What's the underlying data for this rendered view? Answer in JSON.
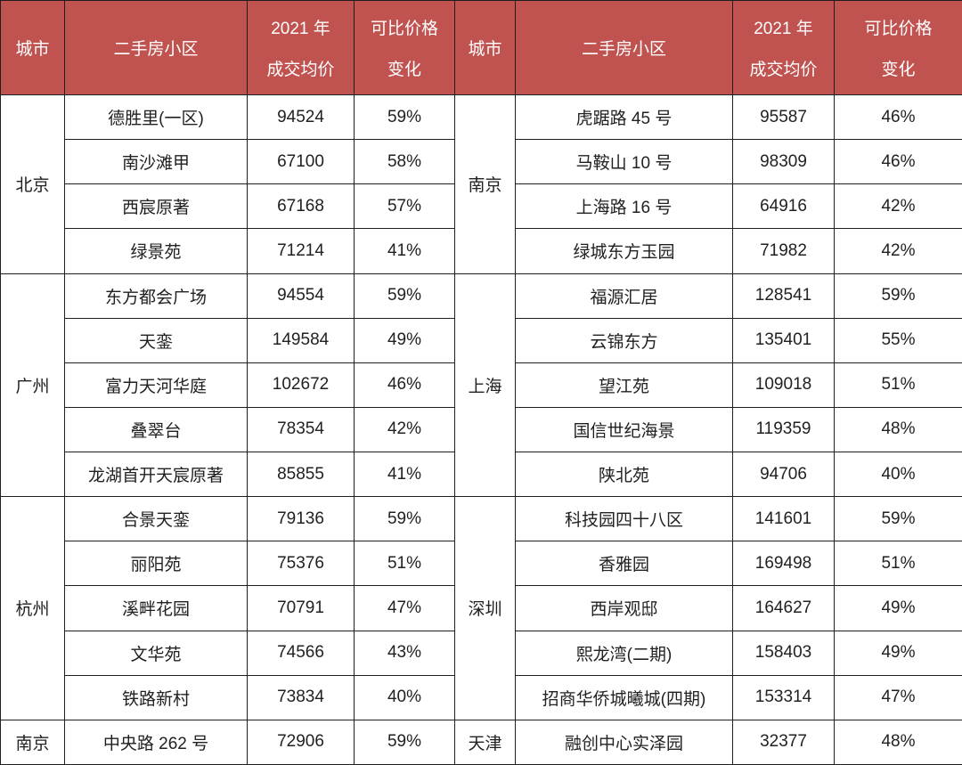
{
  "colors": {
    "header_bg": "#C05250",
    "header_text": "#FFFFFF",
    "body_text": "#212121",
    "border": "#1F1F1F"
  },
  "table": {
    "header": {
      "city": "城市",
      "community": "二手房小区",
      "price_line1": "2021 年",
      "price_line2": "成交均价",
      "change_line1": "可比价格",
      "change_line2": "变化"
    },
    "left_sections": [
      {
        "city": "北京",
        "rows": [
          {
            "community": "德胜里(一区)",
            "price": "94524",
            "change": "59%"
          },
          {
            "community": "南沙滩甲",
            "price": "67100",
            "change": "58%"
          },
          {
            "community": "西宸原著",
            "price": "67168",
            "change": "57%"
          },
          {
            "community": "绿景苑",
            "price": "71214",
            "change": "41%"
          }
        ]
      },
      {
        "city": "广州",
        "rows": [
          {
            "community": "东方都会广场",
            "price": "94554",
            "change": "59%"
          },
          {
            "community": "天銮",
            "price": "149584",
            "change": "49%"
          },
          {
            "community": "富力天河华庭",
            "price": "102672",
            "change": "46%"
          },
          {
            "community": "叠翠台",
            "price": "78354",
            "change": "42%"
          },
          {
            "community": "龙湖首开天宸原著",
            "price": "85855",
            "change": "41%"
          }
        ]
      },
      {
        "city": "杭州",
        "rows": [
          {
            "community": "合景天銮",
            "price": "79136",
            "change": "59%"
          },
          {
            "community": "丽阳苑",
            "price": "75376",
            "change": "51%"
          },
          {
            "community": "溪畔花园",
            "price": "70791",
            "change": "47%"
          },
          {
            "community": "文华苑",
            "price": "74566",
            "change": "43%"
          },
          {
            "community": "铁路新村",
            "price": "73834",
            "change": "40%"
          }
        ]
      },
      {
        "city": "南京",
        "rows": [
          {
            "community": "中央路 262 号",
            "price": "72906",
            "change": "59%"
          }
        ]
      }
    ],
    "right_sections": [
      {
        "city": "南京",
        "rows": [
          {
            "community": "虎踞路 45 号",
            "price": "95587",
            "change": "46%"
          },
          {
            "community": "马鞍山 10 号",
            "price": "98309",
            "change": "46%"
          },
          {
            "community": "上海路 16 号",
            "price": "64916",
            "change": "42%"
          },
          {
            "community": "绿城东方玉园",
            "price": "71982",
            "change": "42%"
          }
        ]
      },
      {
        "city": "上海",
        "rows": [
          {
            "community": "福源汇居",
            "price": "128541",
            "change": "59%"
          },
          {
            "community": "云锦东方",
            "price": "135401",
            "change": "55%"
          },
          {
            "community": "望江苑",
            "price": "109018",
            "change": "51%"
          },
          {
            "community": "国信世纪海景",
            "price": "119359",
            "change": "48%"
          },
          {
            "community": "陕北苑",
            "price": "94706",
            "change": "40%"
          }
        ]
      },
      {
        "city": "深圳",
        "rows": [
          {
            "community": "科技园四十八区",
            "price": "141601",
            "change": "59%"
          },
          {
            "community": "香雅园",
            "price": "169498",
            "change": "51%"
          },
          {
            "community": "西岸观邸",
            "price": "164627",
            "change": "49%"
          },
          {
            "community": "熙龙湾(二期)",
            "price": "158403",
            "change": "49%"
          },
          {
            "community": "招商华侨城曦城(四期)",
            "price": "153314",
            "change": "47%"
          }
        ]
      },
      {
        "city": "天津",
        "rows": [
          {
            "community": "融创中心实泽园",
            "price": "32377",
            "change": "48%"
          }
        ]
      }
    ]
  }
}
